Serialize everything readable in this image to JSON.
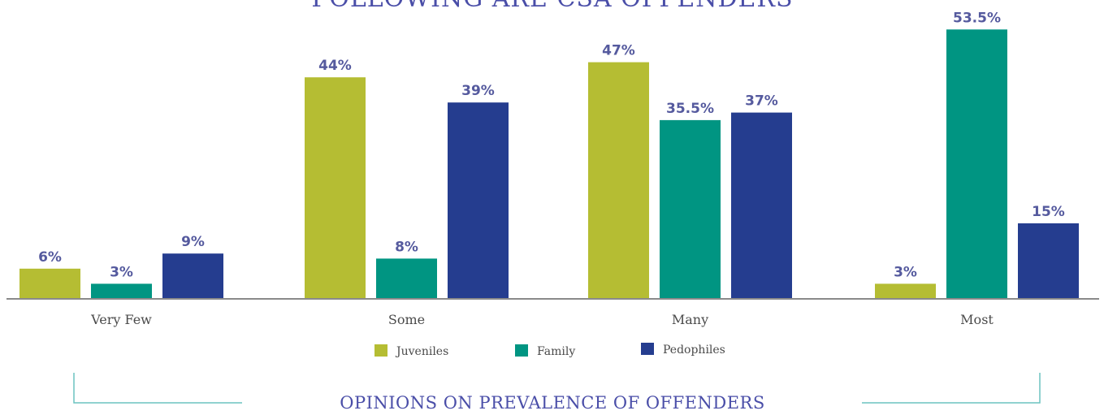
{
  "chart_data": {
    "type": "bar",
    "title": "FOLLOWING ARE CSA OFFENDERS",
    "categories": [
      "Very Few",
      "Some",
      "Many",
      "Most"
    ],
    "series": [
      {
        "name": "Juveniles",
        "color": "#b5bd33",
        "values": [
          6,
          44,
          47,
          3
        ],
        "labels": [
          "6%",
          "44%",
          "47%",
          "3%"
        ]
      },
      {
        "name": "Family",
        "color": "#009582",
        "values": [
          3,
          8,
          35.5,
          53.5
        ],
        "labels": [
          "3%",
          "8%",
          "35.5%",
          "53.5%"
        ]
      },
      {
        "name": "Pedophiles",
        "color": "#253d8f",
        "values": [
          9,
          39,
          37,
          15
        ],
        "labels": [
          "9%",
          "39%",
          "37%",
          "15%"
        ]
      }
    ],
    "ylim": [
      0,
      55
    ],
    "grid": false,
    "legend_position": "bottom-center"
  },
  "footer": {
    "caption": "OPINIONS ON PREVALENCE OF OFFENDERS",
    "bracket_color": "#6cc4c0"
  }
}
